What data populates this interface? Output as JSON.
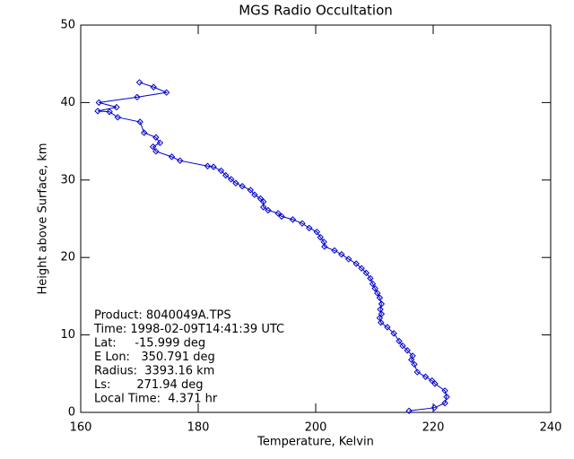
{
  "chart_data": {
    "type": "line",
    "title": "MGS Radio Occultation",
    "x_label": "Temperature, Kelvin",
    "y_label": "Height above Surface, km",
    "color": "#0000cc",
    "marker": "diamond",
    "x": [
      215.9,
      220.2,
      222.0,
      222.3,
      222.0,
      220.3,
      219.8,
      218.7,
      217.3,
      216.8,
      216.3,
      216.5,
      215.6,
      214.8,
      214.2,
      213.3,
      212.2,
      211.1,
      210.9,
      211.2,
      211.0,
      211.2,
      210.9,
      210.5,
      210.1,
      209.7,
      209.3,
      208.6,
      207.8,
      206.9,
      205.6,
      204.4,
      203.2,
      201.5,
      201.4,
      200.8,
      200.2,
      198.9,
      197.7,
      196.1,
      194.2,
      193.6,
      191.9,
      191.1,
      191.1,
      190.6,
      189.6,
      188.9,
      187.5,
      186.4,
      185.6,
      184.7,
      183.9,
      182.6,
      181.6,
      176.9,
      175.5,
      172.8,
      172.3,
      173.5,
      172.8,
      170.8,
      170.1,
      166.3,
      164.9,
      162.9,
      166.1,
      163.1,
      169.6,
      174.6,
      172.4,
      170.0
    ],
    "values": [
      0.2,
      0.6,
      1.2,
      2.0,
      2.8,
      3.7,
      4.1,
      4.6,
      5.2,
      6.2,
      6.8,
      7.3,
      8.0,
      8.6,
      9.2,
      10.2,
      11.0,
      11.6,
      12.2,
      12.7,
      13.3,
      14.0,
      14.8,
      15.4,
      16.0,
      16.6,
      17.3,
      18.0,
      18.6,
      19.2,
      19.8,
      20.4,
      20.9,
      21.4,
      22.0,
      22.6,
      23.3,
      23.8,
      24.4,
      24.9,
      25.3,
      25.7,
      26.1,
      26.5,
      27.2,
      27.6,
      28.1,
      28.7,
      29.2,
      29.6,
      30.1,
      30.6,
      31.2,
      31.7,
      31.8,
      32.5,
      33.0,
      33.7,
      34.3,
      34.8,
      35.5,
      36.1,
      37.5,
      38.1,
      38.8,
      38.9,
      39.4,
      40.0,
      40.7,
      41.3,
      42.0,
      42.6
    ],
    "xlim": [
      160,
      240
    ],
    "xticks": [
      160,
      180,
      200,
      220,
      240
    ],
    "ylim": [
      0,
      50
    ],
    "yticks": [
      0,
      10,
      20,
      30,
      40,
      50
    ],
    "annotations": [
      "Product: 8040049A.TPS",
      "Time: 1998-02-09T14:41:39 UTC",
      "Lat:     -15.999 deg",
      "E Lon:   350.791 deg",
      "Radius:  3393.16 km",
      "Ls:       271.94 deg",
      "Local Time:  4.371 hr"
    ]
  }
}
